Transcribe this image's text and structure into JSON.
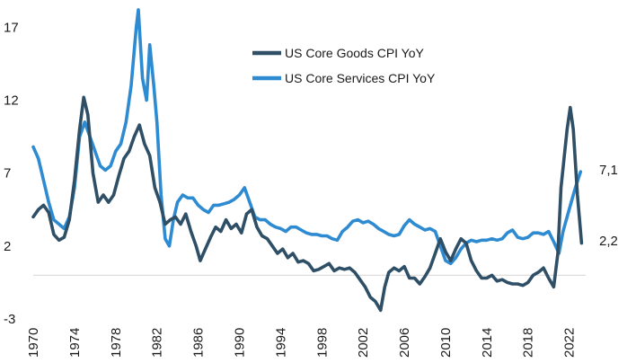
{
  "chart_data": {
    "type": "line",
    "title": "",
    "xlabel": "",
    "ylabel": "",
    "xlim": [
      1970,
      2023.6
    ],
    "ylim": [
      -3,
      18.5
    ],
    "yticks": [
      -3,
      2,
      7,
      12,
      17
    ],
    "xticks": [
      1970,
      1974,
      1978,
      1982,
      1986,
      1990,
      1994,
      1998,
      2002,
      2006,
      2010,
      2014,
      2018,
      2022
    ],
    "grid": false,
    "legend_position": "top-right",
    "series": [
      {
        "name": "US Core Goods CPI YoY",
        "color": "#2e4f66",
        "end_label": "2,2",
        "points": [
          [
            1970,
            4.0
          ],
          [
            1970.5,
            4.5
          ],
          [
            1971,
            4.8
          ],
          [
            1971.5,
            4.3
          ],
          [
            1972,
            2.8
          ],
          [
            1972.5,
            2.4
          ],
          [
            1973,
            2.6
          ],
          [
            1973.5,
            3.8
          ],
          [
            1974,
            6.5
          ],
          [
            1974.5,
            10.0
          ],
          [
            1974.9,
            12.2
          ],
          [
            1975.3,
            11.0
          ],
          [
            1975.8,
            7.0
          ],
          [
            1976.3,
            5.0
          ],
          [
            1976.8,
            5.5
          ],
          [
            1977.3,
            5.0
          ],
          [
            1977.8,
            5.5
          ],
          [
            1978.3,
            6.8
          ],
          [
            1978.8,
            8.0
          ],
          [
            1979.3,
            8.5
          ],
          [
            1979.8,
            9.5
          ],
          [
            1980.3,
            10.3
          ],
          [
            1980.8,
            9.0
          ],
          [
            1981.3,
            8.2
          ],
          [
            1981.8,
            6.0
          ],
          [
            1982.3,
            5.0
          ],
          [
            1982.8,
            3.5
          ],
          [
            1983.3,
            3.8
          ],
          [
            1983.8,
            4.0
          ],
          [
            1984.3,
            3.5
          ],
          [
            1984.8,
            4.2
          ],
          [
            1985.3,
            3.0
          ],
          [
            1985.8,
            2.0
          ],
          [
            1986.2,
            1.0
          ],
          [
            1986.7,
            1.8
          ],
          [
            1987.2,
            2.6
          ],
          [
            1987.7,
            3.3
          ],
          [
            1988.2,
            3.0
          ],
          [
            1988.7,
            3.8
          ],
          [
            1989.2,
            3.2
          ],
          [
            1989.7,
            3.5
          ],
          [
            1990.2,
            2.9
          ],
          [
            1990.7,
            4.2
          ],
          [
            1991.2,
            4.5
          ],
          [
            1991.7,
            3.3
          ],
          [
            1992.2,
            2.7
          ],
          [
            1992.7,
            2.5
          ],
          [
            1993.2,
            2.0
          ],
          [
            1993.7,
            1.5
          ],
          [
            1994.2,
            1.8
          ],
          [
            1994.7,
            1.2
          ],
          [
            1995.2,
            1.5
          ],
          [
            1995.7,
            0.9
          ],
          [
            1996.2,
            1.0
          ],
          [
            1996.7,
            0.8
          ],
          [
            1997.2,
            0.3
          ],
          [
            1997.7,
            0.4
          ],
          [
            1998.2,
            0.6
          ],
          [
            1998.7,
            0.8
          ],
          [
            1999.2,
            0.3
          ],
          [
            1999.7,
            0.5
          ],
          [
            2000.2,
            0.4
          ],
          [
            2000.7,
            0.5
          ],
          [
            2001.2,
            0.2
          ],
          [
            2001.7,
            -0.3
          ],
          [
            2002.2,
            -0.8
          ],
          [
            2002.7,
            -1.5
          ],
          [
            2003.2,
            -1.8
          ],
          [
            2003.7,
            -2.4
          ],
          [
            2004.1,
            -0.8
          ],
          [
            2004.5,
            0.2
          ],
          [
            2005.0,
            0.5
          ],
          [
            2005.5,
            0.3
          ],
          [
            2006.0,
            0.6
          ],
          [
            2006.5,
            -0.2
          ],
          [
            2007.0,
            -0.2
          ],
          [
            2007.5,
            -0.6
          ],
          [
            2008.0,
            -0.1
          ],
          [
            2008.5,
            0.5
          ],
          [
            2009.0,
            1.5
          ],
          [
            2009.5,
            2.5
          ],
          [
            2010.0,
            1.6
          ],
          [
            2010.5,
            1.0
          ],
          [
            2011.0,
            1.8
          ],
          [
            2011.5,
            2.5
          ],
          [
            2012.0,
            2.2
          ],
          [
            2012.5,
            1.0
          ],
          [
            2013.0,
            0.3
          ],
          [
            2013.5,
            -0.2
          ],
          [
            2014.0,
            -0.2
          ],
          [
            2014.5,
            0.0
          ],
          [
            2015.0,
            -0.4
          ],
          [
            2015.5,
            -0.3
          ],
          [
            2016.0,
            -0.5
          ],
          [
            2016.5,
            -0.6
          ],
          [
            2017.0,
            -0.6
          ],
          [
            2017.5,
            -0.7
          ],
          [
            2018.0,
            -0.5
          ],
          [
            2018.5,
            0.0
          ],
          [
            2019.0,
            0.2
          ],
          [
            2019.5,
            0.5
          ],
          [
            2020.0,
            -0.2
          ],
          [
            2020.5,
            -0.8
          ],
          [
            2020.9,
            1.5
          ],
          [
            2021.2,
            6.0
          ],
          [
            2021.5,
            8.0
          ],
          [
            2021.8,
            10.0
          ],
          [
            2022.1,
            11.5
          ],
          [
            2022.4,
            10.0
          ],
          [
            2022.8,
            5.5
          ],
          [
            2023.2,
            2.2
          ]
        ]
      },
      {
        "name": "US Core Services CPI YoY",
        "color": "#2e8bd1",
        "end_label": "7,1",
        "points": [
          [
            1970,
            8.8
          ],
          [
            1970.5,
            8.0
          ],
          [
            1971,
            6.5
          ],
          [
            1971.5,
            5.0
          ],
          [
            1972,
            3.8
          ],
          [
            1972.5,
            3.5
          ],
          [
            1973,
            3.2
          ],
          [
            1973.5,
            4.0
          ],
          [
            1974,
            6.0
          ],
          [
            1974.5,
            9.5
          ],
          [
            1975,
            10.5
          ],
          [
            1975.5,
            9.5
          ],
          [
            1976,
            8.5
          ],
          [
            1976.5,
            7.5
          ],
          [
            1977,
            7.2
          ],
          [
            1977.5,
            7.5
          ],
          [
            1978,
            8.5
          ],
          [
            1978.5,
            9.0
          ],
          [
            1979,
            10.5
          ],
          [
            1979.5,
            13.0
          ],
          [
            1980.0,
            17.0
          ],
          [
            1980.2,
            18.2
          ],
          [
            1980.6,
            13.5
          ],
          [
            1981.0,
            12.0
          ],
          [
            1981.3,
            15.8
          ],
          [
            1981.7,
            13.0
          ],
          [
            1982.0,
            10.5
          ],
          [
            1982.4,
            5.5
          ],
          [
            1982.8,
            2.5
          ],
          [
            1983.2,
            2.0
          ],
          [
            1983.6,
            3.8
          ],
          [
            1984.0,
            5.0
          ],
          [
            1984.5,
            5.5
          ],
          [
            1985.0,
            5.3
          ],
          [
            1985.5,
            5.3
          ],
          [
            1986.0,
            4.8
          ],
          [
            1986.5,
            4.5
          ],
          [
            1987.0,
            4.3
          ],
          [
            1987.5,
            4.8
          ],
          [
            1988.0,
            4.8
          ],
          [
            1988.5,
            4.9
          ],
          [
            1989.0,
            5.0
          ],
          [
            1989.5,
            5.2
          ],
          [
            1990.0,
            5.5
          ],
          [
            1990.5,
            6.0
          ],
          [
            1991.0,
            5.0
          ],
          [
            1991.5,
            4.0
          ],
          [
            1992.0,
            3.8
          ],
          [
            1992.5,
            3.8
          ],
          [
            1993.0,
            3.5
          ],
          [
            1993.5,
            3.3
          ],
          [
            1994.0,
            3.2
          ],
          [
            1994.5,
            3.0
          ],
          [
            1995.0,
            3.3
          ],
          [
            1995.5,
            3.3
          ],
          [
            1996.0,
            3.1
          ],
          [
            1996.5,
            2.9
          ],
          [
            1997.0,
            2.8
          ],
          [
            1997.5,
            2.8
          ],
          [
            1998.0,
            2.7
          ],
          [
            1998.5,
            2.7
          ],
          [
            1999.0,
            2.5
          ],
          [
            1999.5,
            2.4
          ],
          [
            2000.0,
            3.0
          ],
          [
            2000.5,
            3.3
          ],
          [
            2001.0,
            3.7
          ],
          [
            2001.5,
            3.8
          ],
          [
            2002.0,
            3.6
          ],
          [
            2002.5,
            3.7
          ],
          [
            2003.0,
            3.5
          ],
          [
            2003.5,
            3.2
          ],
          [
            2004.0,
            3.0
          ],
          [
            2004.5,
            2.8
          ],
          [
            2005.0,
            2.7
          ],
          [
            2005.5,
            2.8
          ],
          [
            2006.0,
            3.4
          ],
          [
            2006.5,
            3.8
          ],
          [
            2007.0,
            3.5
          ],
          [
            2007.5,
            3.3
          ],
          [
            2008.0,
            3.1
          ],
          [
            2008.5,
            3.2
          ],
          [
            2009.0,
            3.0
          ],
          [
            2009.5,
            2.0
          ],
          [
            2010.0,
            1.0
          ],
          [
            2010.5,
            0.8
          ],
          [
            2011.0,
            1.2
          ],
          [
            2011.5,
            1.8
          ],
          [
            2012.0,
            2.2
          ],
          [
            2012.5,
            2.4
          ],
          [
            2013.0,
            2.3
          ],
          [
            2013.5,
            2.4
          ],
          [
            2014.0,
            2.4
          ],
          [
            2014.5,
            2.5
          ],
          [
            2015.0,
            2.4
          ],
          [
            2015.5,
            2.5
          ],
          [
            2016.0,
            2.9
          ],
          [
            2016.5,
            3.1
          ],
          [
            2017.0,
            2.6
          ],
          [
            2017.5,
            2.5
          ],
          [
            2018.0,
            2.6
          ],
          [
            2018.5,
            2.9
          ],
          [
            2019.0,
            2.9
          ],
          [
            2019.5,
            2.8
          ],
          [
            2020.0,
            3.0
          ],
          [
            2020.5,
            2.3
          ],
          [
            2021.0,
            1.5
          ],
          [
            2021.4,
            3.0
          ],
          [
            2021.8,
            4.0
          ],
          [
            2022.2,
            5.0
          ],
          [
            2022.6,
            6.0
          ],
          [
            2023.1,
            7.1
          ]
        ]
      }
    ]
  }
}
